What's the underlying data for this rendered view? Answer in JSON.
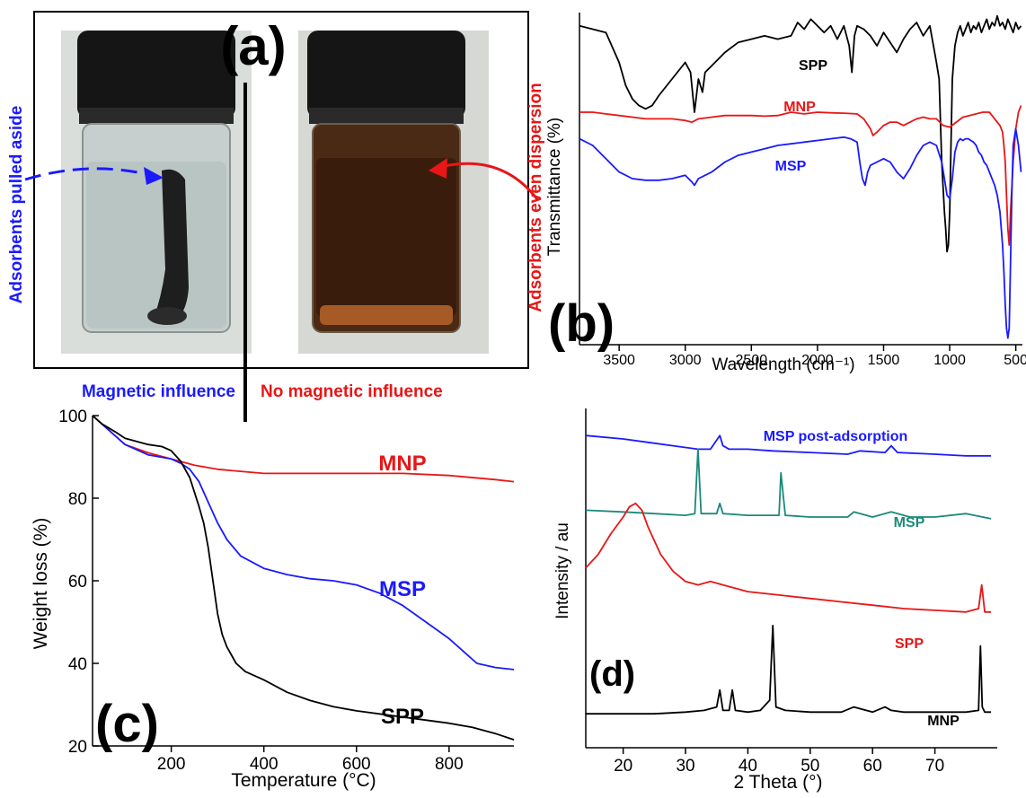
{
  "panel_a": {
    "label": "(a)",
    "left_side_text": "Adsorbents pulled aside",
    "right_side_text": "Adsorbents even dispersion",
    "left_caption": "Magnetic influence",
    "right_caption": "No magnetic influence",
    "colors": {
      "left": "#1a1aff",
      "right": "#e81616",
      "liquid_clear": "#cfd8d6",
      "liquid_dark": "#3a1c0c"
    }
  },
  "chart_data": [
    {
      "panel": "b",
      "type": "line",
      "label": "(b)",
      "xlabel": "Wavelength (cm⁻¹)",
      "ylabel": "Transmittance (%)",
      "xlim": [
        3800,
        450
      ],
      "x_reversed": true,
      "xticks": [
        3500,
        3000,
        2500,
        2000,
        1500,
        1000,
        500
      ],
      "y_ticks_shown": false,
      "series": [
        {
          "name": "SPP",
          "color": "#000000",
          "x": [
            3800,
            3700,
            3600,
            3500,
            3450,
            3400,
            3350,
            3300,
            3250,
            3200,
            3100,
            3000,
            2960,
            2930,
            2900,
            2870,
            2850,
            2800,
            2700,
            2600,
            2500,
            2400,
            2300,
            2200,
            2150,
            2100,
            2050,
            2000,
            1950,
            1900,
            1850,
            1800,
            1760,
            1740,
            1720,
            1700,
            1650,
            1600,
            1550,
            1500,
            1450,
            1400,
            1350,
            1300,
            1250,
            1200,
            1150,
            1100,
            1080,
            1060,
            1040,
            1030,
            1020,
            1010,
            1000,
            990,
            980,
            960,
            940,
            920,
            900,
            880,
            860,
            840,
            820,
            800,
            780,
            760,
            740,
            720,
            700,
            680,
            660,
            640,
            620,
            600,
            580,
            560,
            540,
            520,
            500,
            480,
            460
          ],
          "y": [
            96,
            95,
            94,
            85,
            78,
            74,
            72,
            71,
            72,
            75,
            80,
            85,
            82,
            70,
            80,
            76,
            82,
            84,
            88,
            91,
            92,
            93,
            92,
            93,
            97,
            95,
            98,
            96,
            94,
            96,
            92,
            96,
            90,
            82,
            93,
            96,
            95,
            93,
            90,
            94,
            91,
            88,
            92,
            95,
            97,
            93,
            96,
            85,
            80,
            55,
            40,
            35,
            28,
            30,
            40,
            60,
            80,
            90,
            94,
            96,
            93,
            95,
            97,
            94,
            96,
            95,
            97,
            94,
            96,
            98,
            95,
            97,
            96,
            99,
            96,
            97,
            95,
            98,
            96,
            94,
            97,
            95,
            96
          ]
        },
        {
          "name": "MNP",
          "color": "#e81616",
          "x": [
            3800,
            3700,
            3600,
            3500,
            3400,
            3300,
            3200,
            3100,
            3000,
            2950,
            2900,
            2800,
            2700,
            2600,
            2500,
            2400,
            2300,
            2200,
            2100,
            2000,
            1900,
            1800,
            1700,
            1650,
            1600,
            1580,
            1550,
            1500,
            1450,
            1400,
            1350,
            1300,
            1250,
            1200,
            1150,
            1100,
            1050,
            1000,
            950,
            900,
            850,
            800,
            750,
            700,
            680,
            660,
            640,
            620,
            600,
            590,
            580,
            570,
            560,
            550,
            540,
            520,
            500,
            480,
            460
          ],
          "y": [
            70,
            70,
            69.5,
            69,
            68.5,
            68,
            68,
            68,
            67.5,
            67,
            68,
            68.5,
            69,
            69,
            69,
            68.8,
            69,
            70,
            69.5,
            70,
            69.8,
            69.7,
            69.5,
            68,
            65,
            63,
            64,
            66,
            67,
            67,
            66,
            67,
            68,
            68.5,
            68,
            68,
            66,
            65.5,
            67,
            68.5,
            69,
            69.5,
            70,
            70,
            69,
            68,
            67,
            66,
            64,
            60,
            55,
            45,
            35,
            30,
            40,
            55,
            65,
            70,
            72
          ]
        },
        {
          "name": "MSP",
          "color": "#1a1aff",
          "x": [
            3800,
            3700,
            3600,
            3500,
            3400,
            3300,
            3200,
            3100,
            3000,
            2950,
            2930,
            2900,
            2850,
            2800,
            2700,
            2600,
            2500,
            2400,
            2300,
            2200,
            2100,
            2000,
            1900,
            1800,
            1750,
            1700,
            1680,
            1660,
            1640,
            1620,
            1600,
            1550,
            1500,
            1450,
            1400,
            1350,
            1300,
            1250,
            1200,
            1150,
            1100,
            1060,
            1040,
            1020,
            1000,
            980,
            960,
            940,
            920,
            900,
            880,
            860,
            840,
            820,
            800,
            780,
            760,
            740,
            720,
            700,
            680,
            660,
            640,
            620,
            600,
            590,
            580,
            570,
            560,
            550,
            540,
            530,
            520,
            500,
            480,
            460
          ],
          "y": [
            62,
            60,
            56,
            52,
            50,
            49.5,
            49.5,
            50,
            51,
            49,
            48,
            50,
            51,
            52,
            55,
            57,
            58,
            59,
            60,
            60.5,
            61,
            61.5,
            62,
            62.5,
            62,
            61,
            55,
            50,
            48,
            52,
            54,
            55,
            56,
            55,
            52,
            50,
            53,
            57,
            60,
            61,
            60,
            55,
            50,
            45,
            44,
            50,
            58,
            61,
            62,
            61.5,
            62,
            62,
            61.5,
            61,
            60,
            58,
            57,
            55,
            54,
            52,
            50,
            48,
            45,
            40,
            30,
            22,
            12,
            5,
            2,
            5,
            25,
            45,
            60,
            65,
            60,
            52
          ]
        }
      ]
    },
    {
      "panel": "c",
      "type": "line",
      "label": "(c)",
      "xlabel": "Temperature (°C)",
      "ylabel": "Weight loss (%)",
      "xlim": [
        30,
        940
      ],
      "ylim": [
        20,
        100
      ],
      "xticks": [
        200,
        400,
        600,
        800
      ],
      "yticks": [
        20,
        40,
        60,
        80,
        100
      ],
      "series": [
        {
          "name": "MNP",
          "color": "#e81616",
          "x": [
            30,
            50,
            80,
            100,
            150,
            200,
            250,
            300,
            350,
            400,
            450,
            500,
            600,
            700,
            800,
            900,
            940
          ],
          "y": [
            100,
            98,
            95,
            93,
            91,
            89.5,
            88,
            87,
            86.5,
            86,
            86,
            86,
            86,
            86,
            85.5,
            84.5,
            84
          ]
        },
        {
          "name": "MSP",
          "color": "#1a1aff",
          "x": [
            30,
            50,
            80,
            100,
            150,
            200,
            220,
            240,
            260,
            280,
            300,
            320,
            350,
            400,
            450,
            500,
            550,
            600,
            650,
            700,
            750,
            800,
            830,
            860,
            900,
            940
          ],
          "y": [
            100,
            98,
            95,
            93,
            90.5,
            89.5,
            88.5,
            87,
            84,
            79,
            74,
            70,
            66,
            63,
            61.5,
            60.5,
            60,
            59,
            57,
            54,
            50,
            46,
            43,
            40,
            39,
            38.5
          ]
        },
        {
          "name": "SPP",
          "color": "#000000",
          "x": [
            30,
            50,
            80,
            100,
            150,
            180,
            200,
            220,
            240,
            260,
            270,
            280,
            290,
            300,
            310,
            320,
            340,
            360,
            400,
            450,
            500,
            550,
            600,
            700,
            800,
            850,
            900,
            940
          ],
          "y": [
            100,
            98,
            96,
            94.5,
            93,
            92.5,
            91.5,
            89,
            85,
            78,
            74,
            68,
            60,
            52,
            47,
            44,
            40,
            38,
            36,
            33,
            31,
            29.5,
            28.5,
            27,
            25.5,
            24.5,
            23,
            21.5
          ]
        }
      ]
    },
    {
      "panel": "d",
      "type": "line",
      "label": "(d)",
      "xlabel": "2 Theta (°)",
      "ylabel": "Intensity / au",
      "xlim": [
        14,
        80
      ],
      "xticks": [
        20,
        30,
        40,
        50,
        60,
        70
      ],
      "y_ticks_shown": false,
      "series": [
        {
          "name": "MSP  post-adsorption",
          "color": "#1a1aff",
          "x": [
            14,
            20,
            24,
            28,
            32,
            34,
            35.5,
            36,
            37,
            40,
            44,
            50,
            56,
            58,
            62,
            63,
            64,
            70,
            75,
            79
          ],
          "y": [
            92,
            91,
            90,
            89,
            88,
            88,
            92,
            89,
            88,
            88,
            87.5,
            87,
            86.5,
            87.5,
            87,
            89,
            87,
            86.5,
            86,
            86
          ]
        },
        {
          "name": "MSP",
          "color": "#1a8a7a",
          "x": [
            14,
            20,
            25,
            30,
            31.5,
            32,
            32.5,
            35,
            35.5,
            36,
            40,
            45,
            45.3,
            46,
            50,
            56,
            57,
            60,
            63,
            66,
            70,
            75,
            79
          ],
          "y": [
            70,
            69.5,
            69,
            68.5,
            69,
            88,
            69,
            69,
            72,
            69,
            68.5,
            68.5,
            81,
            68.5,
            68,
            68,
            69.5,
            68,
            69.5,
            68,
            68,
            69,
            67.5
          ]
        },
        {
          "name": "SPP",
          "color": "#e81616",
          "x": [
            14,
            16,
            18,
            20,
            21,
            22,
            23,
            24,
            26,
            28,
            30,
            32,
            34,
            36,
            40,
            45,
            50,
            55,
            60,
            65,
            70,
            75,
            77,
            77.5,
            78,
            79
          ],
          "y": [
            53,
            57,
            63,
            68,
            71,
            72,
            70,
            65,
            57,
            52,
            49,
            48,
            49,
            48,
            46,
            45,
            44,
            43,
            42,
            41,
            40.5,
            40,
            41,
            48,
            40,
            40
          ]
        },
        {
          "name": "MNP",
          "color": "#000000",
          "x": [
            14,
            20,
            25,
            30,
            33,
            35,
            35.5,
            36,
            37,
            37.5,
            38,
            40,
            42,
            43.5,
            44,
            44.5,
            46,
            50,
            55,
            57,
            60,
            62,
            63,
            65,
            70,
            75,
            77,
            77.3,
            77.6,
            78,
            79
          ],
          "y": [
            10,
            10,
            10,
            10.5,
            11,
            12,
            17,
            11,
            11,
            17,
            11,
            10.5,
            11,
            14,
            36,
            12,
            11,
            10.5,
            10.5,
            12,
            10.5,
            12,
            11,
            10.5,
            10.5,
            10.5,
            11,
            30,
            12,
            10.5,
            10.5
          ]
        }
      ]
    }
  ]
}
